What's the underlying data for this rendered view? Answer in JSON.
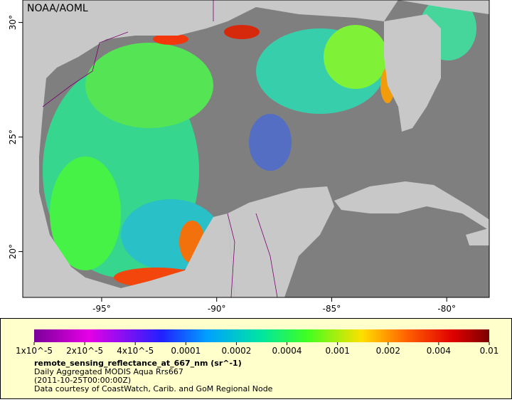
{
  "map": {
    "credit": "NOAA/AOML",
    "lat_ticks": [
      {
        "value": 20,
        "label": "20°"
      },
      {
        "value": 25,
        "label": "25°"
      },
      {
        "value": 30,
        "label": "30°"
      }
    ],
    "lon_ticks": [
      {
        "value": -95,
        "label": "-95°"
      },
      {
        "value": -90,
        "label": "-90°"
      },
      {
        "value": -85,
        "label": "-85°"
      },
      {
        "value": -80,
        "label": "-80°"
      }
    ]
  },
  "legend": {
    "colorbar_labels": [
      "1x10^-5",
      "2x10^-5",
      "4x10^-5",
      "0.0001",
      "0.0002",
      "0.0004",
      "0.001",
      "0.002",
      "0.004",
      "0.01"
    ],
    "variable": "remote_sensing_reflectance_at_667_nm (sr^-1)",
    "lines": [
      "Daily Aggregated MODIS Aqua Rrs667",
      "(2011-10-25T00:00:00Z)",
      "Data courtesy of CoastWatch, Carib. and GoM Regional Node"
    ]
  }
}
